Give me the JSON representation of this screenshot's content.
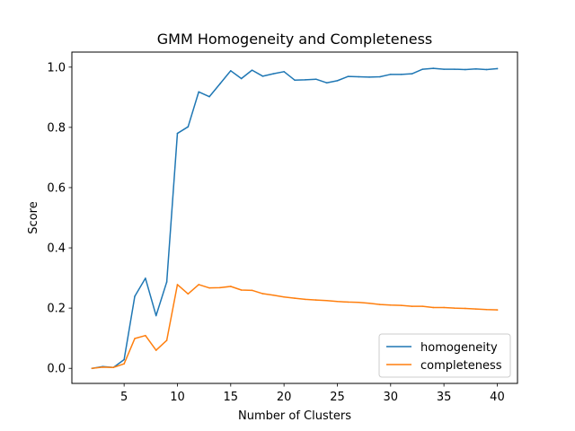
{
  "chart_data": {
    "type": "line",
    "title": "GMM Homogeneity and Completeness",
    "xlabel": "Number of Clusters",
    "ylabel": "Score",
    "xlim": [
      0.1,
      41.9
    ],
    "ylim": [
      -0.05,
      1.05
    ],
    "x_ticks": [
      5,
      10,
      15,
      20,
      25,
      30,
      35,
      40
    ],
    "x_tick_labels": [
      "5",
      "10",
      "15",
      "20",
      "25",
      "30",
      "35",
      "40"
    ],
    "y_ticks": [
      0.0,
      0.2,
      0.4,
      0.6,
      0.8,
      1.0
    ],
    "y_tick_labels": [
      "0.0",
      "0.2",
      "0.4",
      "0.6",
      "0.8",
      "1.0"
    ],
    "grid": false,
    "legend_position": "lower-right",
    "x": [
      2,
      3,
      4,
      5,
      6,
      7,
      8,
      9,
      10,
      11,
      12,
      13,
      14,
      15,
      16,
      17,
      18,
      19,
      20,
      21,
      22,
      23,
      24,
      25,
      26,
      27,
      28,
      29,
      30,
      31,
      32,
      33,
      34,
      35,
      36,
      37,
      38,
      39,
      40
    ],
    "series": [
      {
        "name": "homogeneity",
        "color": "#1f77b4",
        "values": [
          0.0,
          0.006,
          0.003,
          0.029,
          0.239,
          0.299,
          0.175,
          0.287,
          0.78,
          0.802,
          0.918,
          0.902,
          0.945,
          0.988,
          0.962,
          0.99,
          0.97,
          0.978,
          0.985,
          0.957,
          0.958,
          0.96,
          0.948,
          0.955,
          0.969,
          0.968,
          0.967,
          0.968,
          0.976,
          0.976,
          0.978,
          0.993,
          0.996,
          0.993,
          0.993,
          0.992,
          0.994,
          0.992,
          0.995
        ]
      },
      {
        "name": "completeness",
        "color": "#ff7f0e",
        "values": [
          0.0,
          0.004,
          0.003,
          0.015,
          0.099,
          0.109,
          0.06,
          0.093,
          0.278,
          0.247,
          0.278,
          0.267,
          0.268,
          0.272,
          0.26,
          0.259,
          0.248,
          0.243,
          0.237,
          0.233,
          0.229,
          0.227,
          0.225,
          0.222,
          0.22,
          0.219,
          0.216,
          0.212,
          0.21,
          0.209,
          0.206,
          0.206,
          0.202,
          0.202,
          0.2,
          0.199,
          0.197,
          0.195,
          0.194
        ]
      }
    ]
  }
}
